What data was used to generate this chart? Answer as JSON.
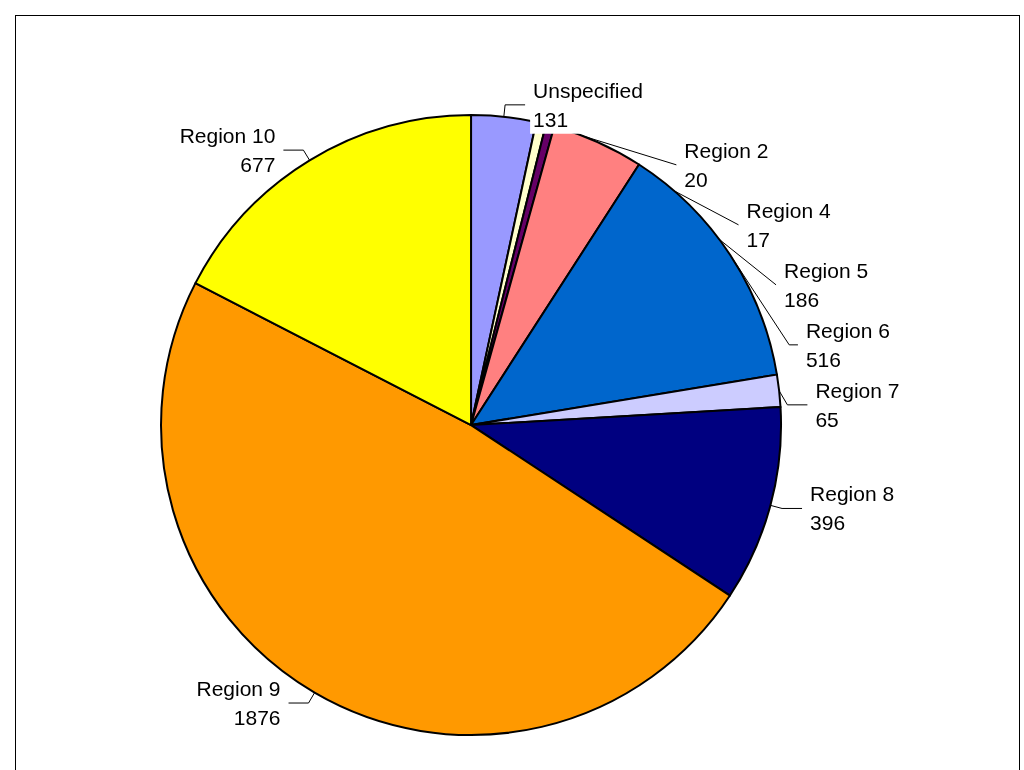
{
  "chart_data": {
    "type": "pie",
    "categories": [
      "Unspecified",
      "Region 2",
      "Region 4",
      "Region 5",
      "Region 6",
      "Region 7",
      "Region 8",
      "Region 9",
      "Region 10"
    ],
    "values": [
      131,
      20,
      17,
      186,
      516,
      65,
      396,
      1876,
      677
    ],
    "colors": [
      "#9999ff",
      "#ffffcc",
      "#660066",
      "#ff8080",
      "#0066cc",
      "#ccccff",
      "#000080",
      "#ff9900",
      "#ffff00"
    ],
    "data_labels": true,
    "legend": false
  }
}
